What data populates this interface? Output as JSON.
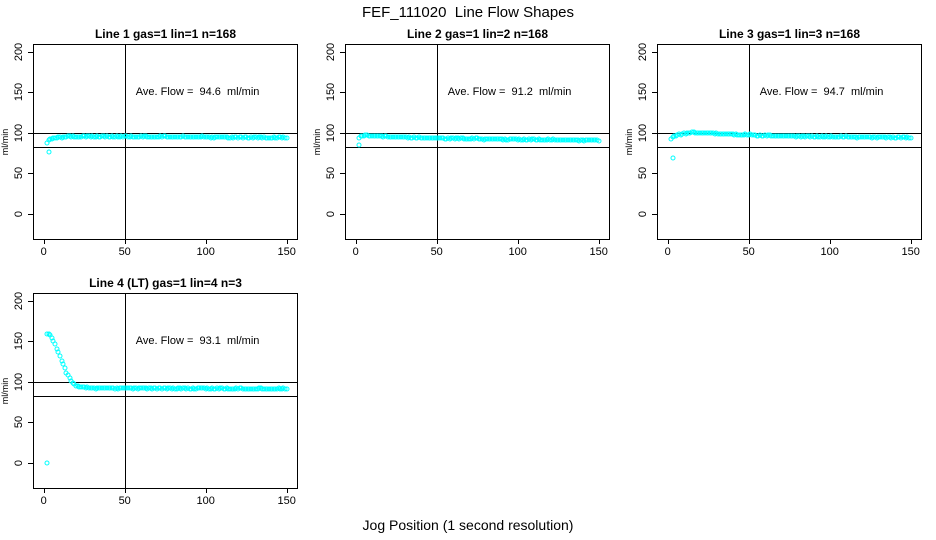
{
  "page": {
    "title": "FEF_111020  Line Flow Shapes",
    "xlabel": "Jog Position (1 second resolution)"
  },
  "colors": {
    "marker": "#00ffff",
    "axis": "#000000",
    "background": "#ffffff"
  },
  "axes": {
    "x_ticks": [
      0,
      50,
      100,
      150
    ],
    "y_ticks": [
      0,
      50,
      100,
      150,
      200
    ],
    "ylabel": "ml/min",
    "xlim": [
      0,
      150
    ],
    "ylim": [
      0,
      200
    ]
  },
  "chart_data": [
    {
      "type": "scatter",
      "title": "Line 1 gas=1 lin=1 n=168",
      "ave_label": "Ave. Flow =  94.6  ml/min",
      "ave_flow_ml_min": 94.6,
      "n": 168,
      "reference_lines": {
        "horizontal": [
          100,
          82
        ],
        "vertical": [
          50
        ]
      },
      "profile": [
        [
          2,
          87
        ],
        [
          3,
          90
        ],
        [
          4,
          91.5
        ],
        [
          5,
          92.5
        ],
        [
          7,
          93.5
        ],
        [
          10,
          94.3
        ],
        [
          15,
          94.8
        ],
        [
          25,
          95
        ],
        [
          50,
          95
        ],
        [
          70,
          94.8
        ],
        [
          90,
          94.5
        ],
        [
          110,
          94.2
        ],
        [
          130,
          93.8
        ],
        [
          150,
          93.5
        ]
      ],
      "extras": [
        [
          3,
          76
        ]
      ]
    },
    {
      "type": "scatter",
      "title": "Line 2 gas=1 lin=2 n=168",
      "ave_label": "Ave. Flow =  91.2  ml/min",
      "ave_flow_ml_min": 91.2,
      "n": 168,
      "reference_lines": {
        "horizontal": [
          100,
          82
        ],
        "vertical": [
          50
        ]
      },
      "profile": [
        [
          2,
          93.5
        ],
        [
          3,
          95
        ],
        [
          5,
          96.3
        ],
        [
          8,
          96.5
        ],
        [
          12,
          96
        ],
        [
          18,
          95.2
        ],
        [
          25,
          94.5
        ],
        [
          35,
          93.8
        ],
        [
          50,
          93
        ],
        [
          65,
          92.5
        ],
        [
          80,
          92
        ],
        [
          100,
          91.5
        ],
        [
          120,
          91
        ],
        [
          135,
          90.8
        ],
        [
          150,
          90.5
        ]
      ],
      "extras": [
        [
          2,
          85
        ]
      ]
    },
    {
      "type": "scatter",
      "title": "Line 3 gas=1 lin=3 n=168",
      "ave_label": "Ave. Flow =  94.7  ml/min",
      "ave_flow_ml_min": 94.7,
      "n": 168,
      "reference_lines": {
        "horizontal": [
          100,
          82
        ],
        "vertical": [
          50
        ]
      },
      "profile": [
        [
          2,
          92
        ],
        [
          4,
          95.5
        ],
        [
          6,
          97
        ],
        [
          9,
          98.5
        ],
        [
          13,
          99.5
        ],
        [
          20,
          99.7
        ],
        [
          28,
          99
        ],
        [
          36,
          98.2
        ],
        [
          45,
          97.3
        ],
        [
          55,
          96.5
        ],
        [
          70,
          95.8
        ],
        [
          85,
          95.2
        ],
        [
          100,
          94.8
        ],
        [
          120,
          94.3
        ],
        [
          135,
          94
        ],
        [
          150,
          93.7
        ]
      ],
      "extras": [
        [
          3,
          68
        ]
      ]
    },
    {
      "type": "scatter",
      "title": "Line 4 (LT) gas=1 lin=4 n=3",
      "ave_label": "Ave. Flow =  93.1  ml/min",
      "ave_flow_ml_min": 93.1,
      "n": 3,
      "reference_lines": {
        "horizontal": [
          100,
          82
        ],
        "vertical": [
          50
        ]
      },
      "profile": [
        [
          2,
          159
        ],
        [
          3,
          158.5
        ],
        [
          4,
          157
        ],
        [
          5,
          154
        ],
        [
          6,
          150
        ],
        [
          7,
          146
        ],
        [
          8,
          141
        ],
        [
          9,
          136
        ],
        [
          10,
          131
        ],
        [
          11,
          126
        ],
        [
          12,
          121
        ],
        [
          13,
          116
        ],
        [
          14,
          111
        ],
        [
          15,
          107
        ],
        [
          16,
          103.5
        ],
        [
          17,
          100.5
        ],
        [
          18,
          98
        ],
        [
          19,
          96.5
        ],
        [
          20,
          95
        ],
        [
          22,
          93.5
        ],
        [
          25,
          92.5
        ],
        [
          28,
          92
        ],
        [
          35,
          91.8
        ],
        [
          50,
          91.8
        ],
        [
          70,
          91.5
        ],
        [
          90,
          91.5
        ],
        [
          110,
          91.2
        ],
        [
          130,
          91
        ],
        [
          150,
          91
        ]
      ],
      "extras": [
        [
          2,
          0
        ]
      ]
    }
  ]
}
